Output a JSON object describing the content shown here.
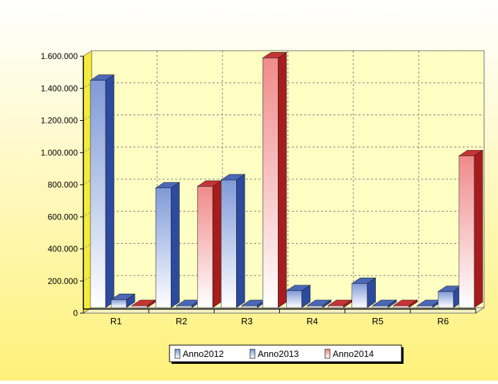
{
  "colors": {
    "background_top": "#ffffff",
    "background_bottom": "#fff17a",
    "plot_face": "#ffffc4",
    "plot_left_wall": "#f5ec3a",
    "grid": "#808080",
    "series_1_dark": "#1f3d8f",
    "series_1_light": "#ffffff",
    "series_2_dark": "#1f3d8f",
    "series_2_light": "#ffffff",
    "series_3_dark": "#b51e1e",
    "series_3_light": "#ffffff"
  },
  "chart_data": {
    "type": "bar",
    "style": "3d-clustered",
    "categories": [
      "R1",
      "R2",
      "R3",
      "R4",
      "R5",
      "R6"
    ],
    "series": [
      {
        "name": "Anno2012",
        "values": [
          1450000,
          780000,
          830000,
          140000,
          185000,
          0
        ]
      },
      {
        "name": "Anno2013",
        "values": [
          85000,
          0,
          0,
          0,
          15000,
          135000
        ]
      },
      {
        "name": "Anno2014",
        "values": [
          0,
          790000,
          1590000,
          0,
          0,
          980000
        ]
      }
    ],
    "ylim": [
      0,
      1600000
    ],
    "yticks": [
      0,
      200000,
      400000,
      600000,
      800000,
      1000000,
      1200000,
      1400000,
      1600000
    ],
    "ytick_labels": [
      "0",
      "200.000",
      "400.000",
      "600.000",
      "800.000",
      "1.000.000",
      "1.200.000",
      "1.400.000",
      "1.600.000"
    ],
    "grid": true,
    "legend_position": "bottom"
  }
}
